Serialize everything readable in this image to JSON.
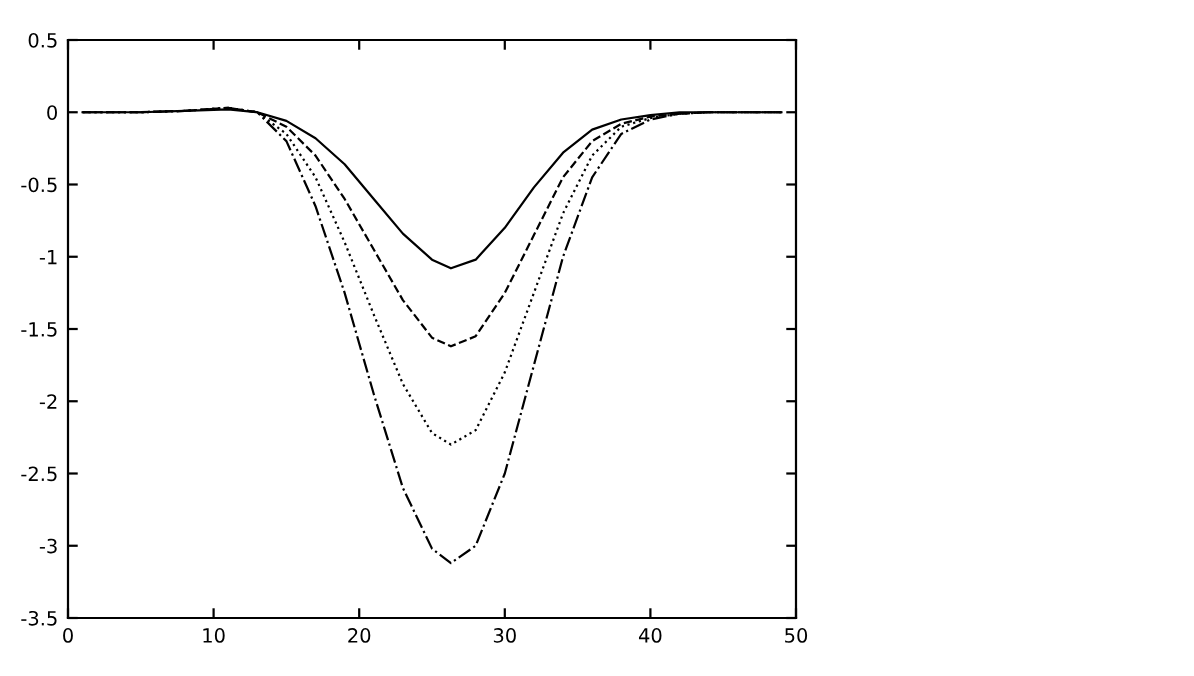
{
  "chart_data": {
    "type": "line",
    "x": [
      1,
      5,
      8,
      11,
      13,
      15,
      17,
      19,
      21,
      23,
      25,
      26.3,
      28,
      30,
      32,
      34,
      36,
      38,
      40,
      42,
      44,
      49
    ],
    "series": [
      {
        "color": "#000000",
        "line_style": "solid",
        "values": [
          0,
          0,
          0.01,
          0.02,
          0,
          -0.06,
          -0.18,
          -0.36,
          -0.6,
          -0.84,
          -1.02,
          -1.08,
          -1.02,
          -0.8,
          -0.52,
          -0.28,
          -0.12,
          -0.05,
          -0.02,
          0,
          0,
          0
        ]
      },
      {
        "color": "#000000",
        "line_style": "dashed",
        "values": [
          0,
          0,
          0.01,
          0.03,
          0,
          -0.1,
          -0.3,
          -0.6,
          -0.95,
          -1.3,
          -1.56,
          -1.62,
          -1.55,
          -1.25,
          -0.85,
          -0.45,
          -0.2,
          -0.08,
          -0.03,
          -0.01,
          0,
          0
        ]
      },
      {
        "color": "#000000",
        "line_style": "dotted",
        "values": [
          0,
          0,
          0.01,
          0.03,
          0,
          -0.15,
          -0.45,
          -0.9,
          -1.4,
          -1.88,
          -2.22,
          -2.3,
          -2.2,
          -1.8,
          -1.25,
          -0.7,
          -0.3,
          -0.1,
          -0.04,
          -0.01,
          0,
          0
        ]
      },
      {
        "color": "#000000",
        "line_style": "dashdot",
        "values": [
          0,
          0,
          0.01,
          0.03,
          0,
          -0.2,
          -0.65,
          -1.25,
          -1.95,
          -2.6,
          -3.02,
          -3.12,
          -3.0,
          -2.5,
          -1.75,
          -1.0,
          -0.45,
          -0.15,
          -0.05,
          -0.01,
          0,
          0
        ]
      }
    ],
    "xlim": [
      0,
      50
    ],
    "xticks": [
      0,
      10,
      20,
      30,
      40,
      50
    ],
    "ylim": [
      -3.5,
      0.5
    ],
    "yticks": [
      -3.5,
      -3,
      -2.5,
      -2,
      -1.5,
      -1,
      -0.5,
      0,
      0.5
    ],
    "grid": false,
    "legend": false
  }
}
